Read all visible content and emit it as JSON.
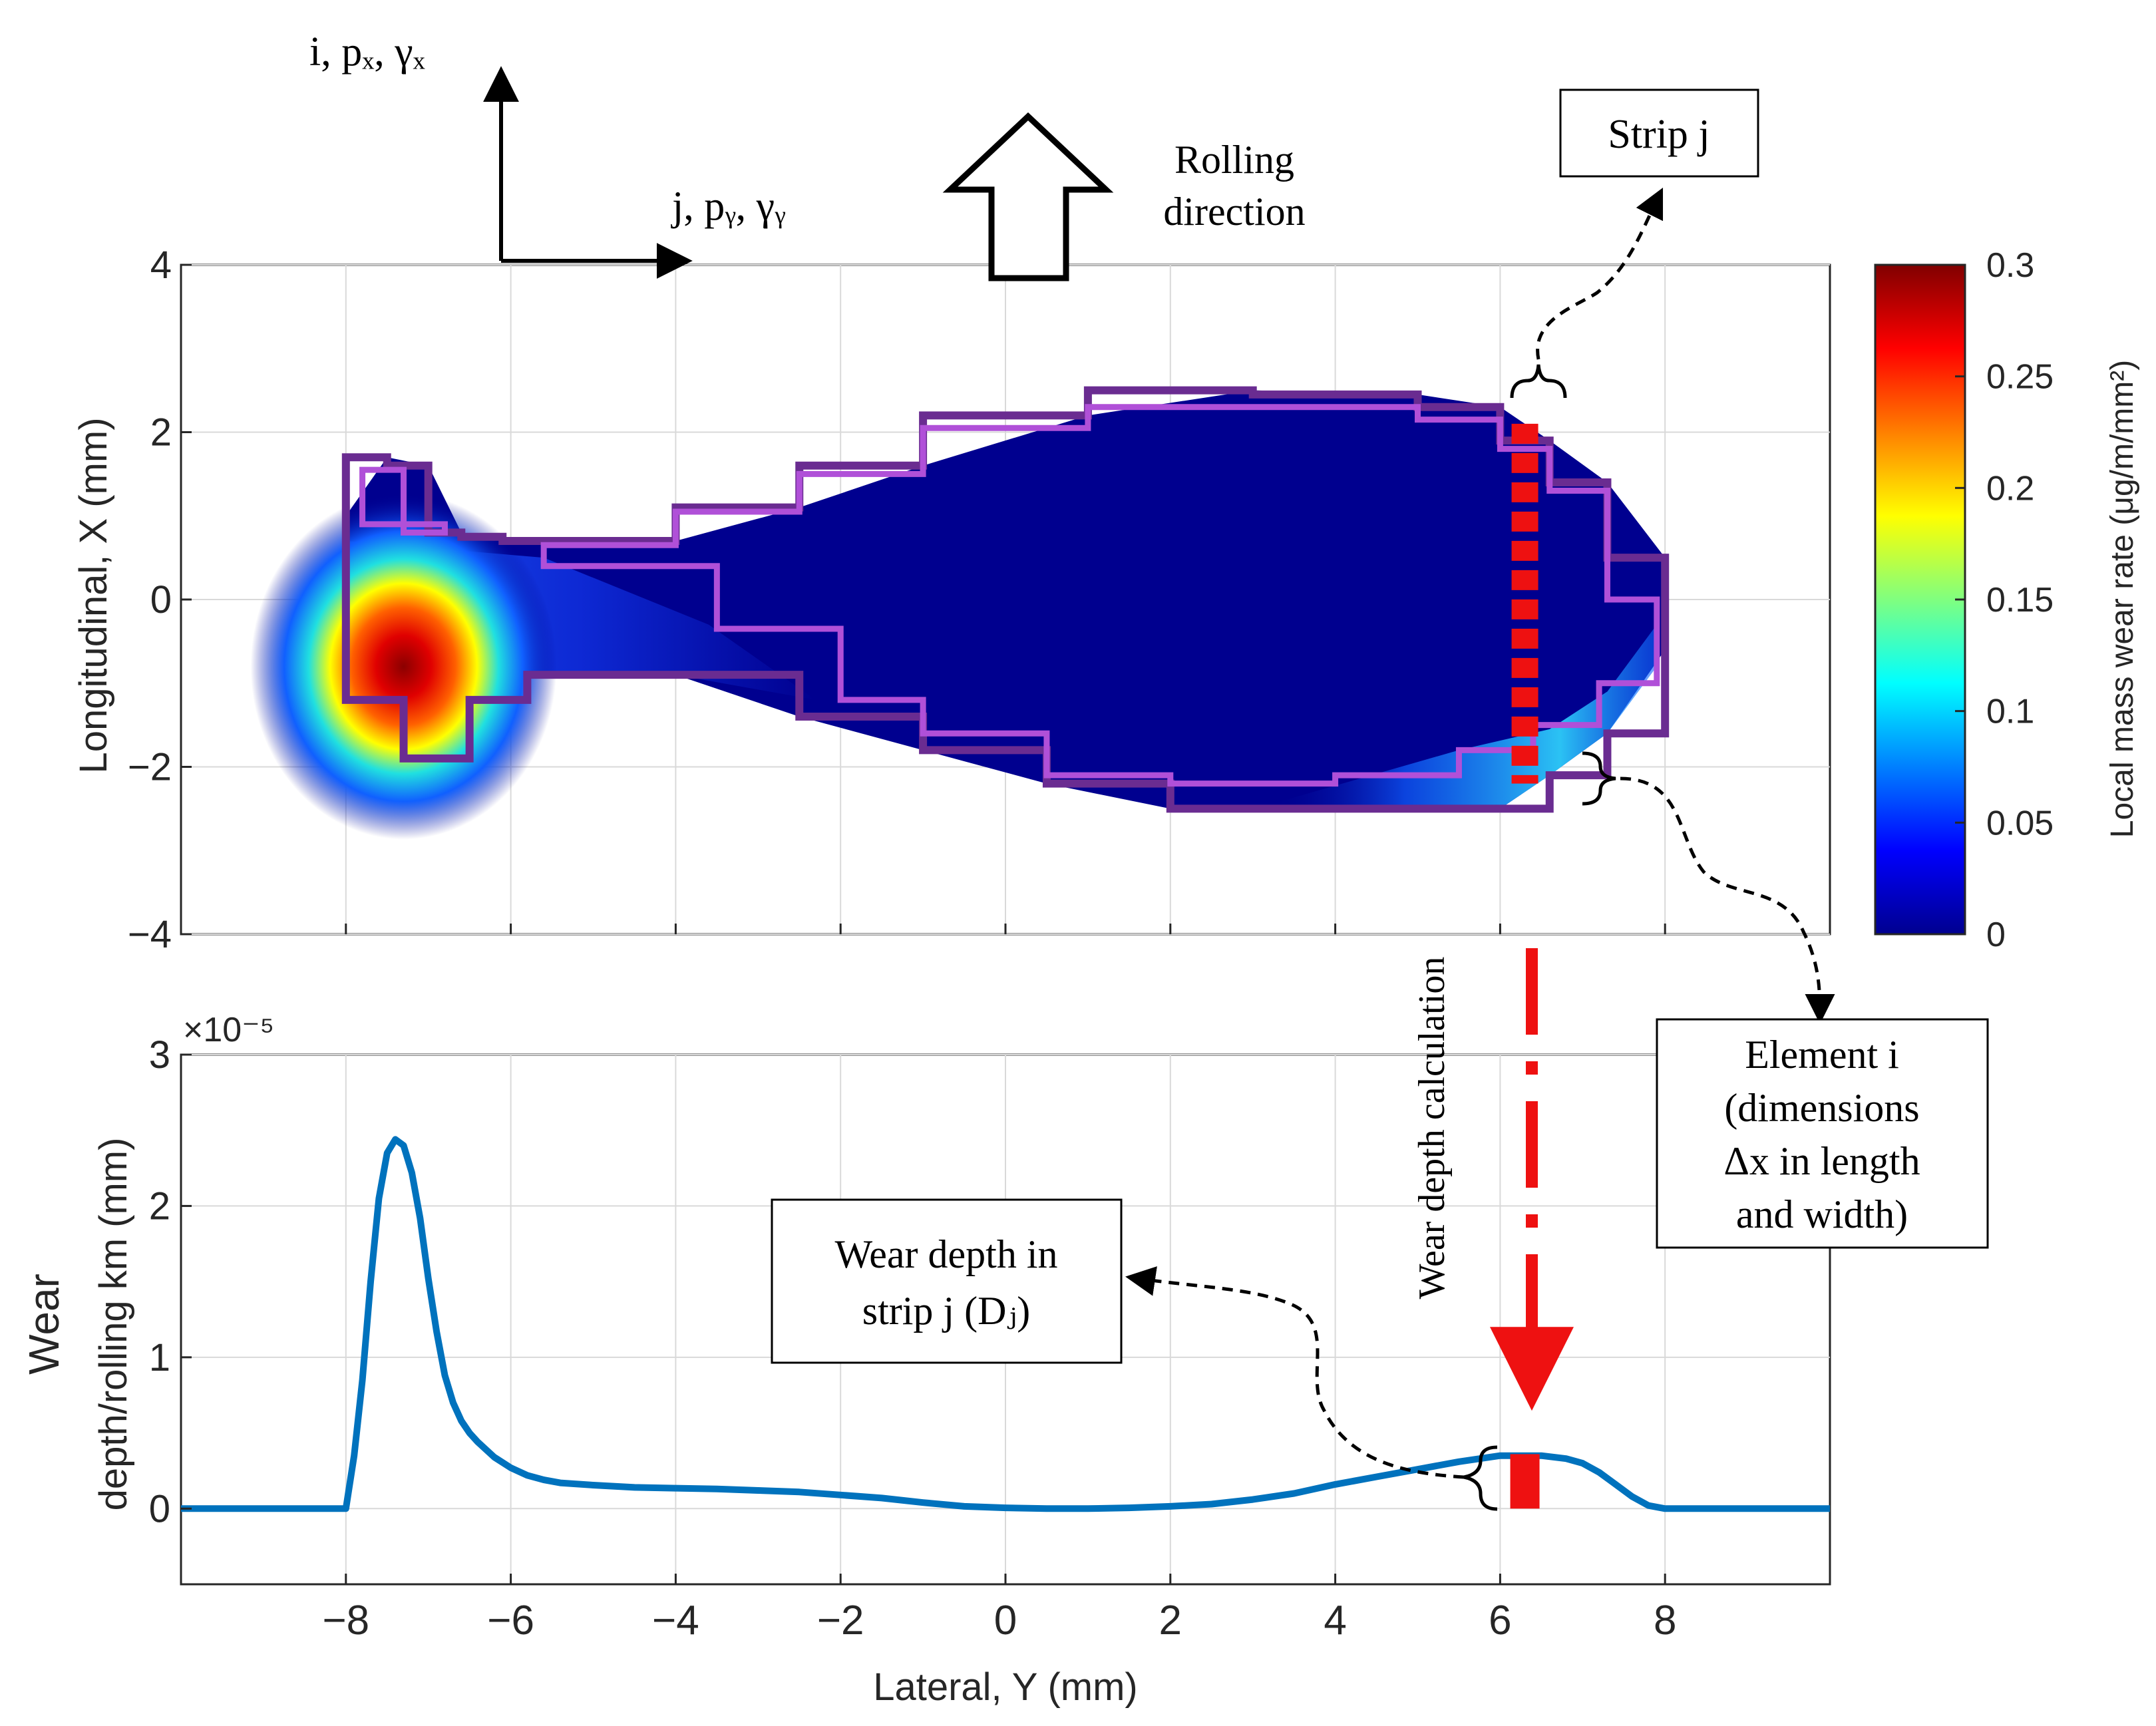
{
  "chart_data": [
    {
      "type": "heatmap",
      "title": "",
      "xlabel": "Lateral, Y (mm)",
      "ylabel": "Longitudinal, X (mm)",
      "xlim": [
        -10,
        10
      ],
      "ylim": [
        -4,
        4
      ],
      "yticks": [
        -4,
        -2,
        0,
        2,
        4
      ],
      "ytick_labels": [
        "−4",
        "−2",
        "0",
        "2",
        "4"
      ],
      "grid": true,
      "colorbar": {
        "label": "Local mass wear rate (μg/m/mm²)",
        "range": [
          0,
          0.3
        ],
        "ticks": [
          0,
          0.05,
          0.1,
          0.15,
          0.2,
          0.25,
          0.3
        ],
        "tick_labels": [
          "0",
          "0.05",
          "0.1",
          "0.15",
          "0.2",
          "0.25",
          "0.3"
        ]
      },
      "contact_outline": [
        [
          -8,
          1
        ],
        [
          -7.5,
          1.7
        ],
        [
          -7,
          1.6
        ],
        [
          -6.6,
          0.8
        ],
        [
          -6.1,
          0.75
        ],
        [
          -5.6,
          0.7
        ],
        [
          -4,
          0.7
        ],
        [
          -2.5,
          1.1
        ],
        [
          -1,
          1.6
        ],
        [
          1,
          2.2
        ],
        [
          3,
          2.5
        ],
        [
          5,
          2.45
        ],
        [
          6,
          2.3
        ],
        [
          6.6,
          1.9
        ],
        [
          7.3,
          1.4
        ],
        [
          8,
          0.5
        ],
        [
          8,
          -0.6
        ],
        [
          7.3,
          -1.6
        ],
        [
          6.6,
          -2.1
        ],
        [
          6,
          -2.5
        ],
        [
          4,
          -2.5
        ],
        [
          2,
          -2.5
        ],
        [
          0.5,
          -2.2
        ],
        [
          -1,
          -1.8
        ],
        [
          -2.5,
          -1.4
        ],
        [
          -4,
          -0.9
        ],
        [
          -5.8,
          -0.9
        ],
        [
          -6.5,
          -1.2
        ],
        [
          -7.3,
          -1.9
        ],
        [
          -8,
          -1.2
        ]
      ],
      "stick_outline": [
        [
          -7.8,
          1.5
        ],
        [
          -7.3,
          1.55
        ],
        [
          -6.8,
          0.9
        ],
        [
          -7.3,
          0.8
        ],
        [
          -7.8,
          0.9
        ]
      ],
      "stick_outline_2": [
        [
          -5.6,
          0.6
        ],
        [
          -4,
          0.65
        ],
        [
          -2.5,
          1.05
        ],
        [
          -1,
          1.5
        ],
        [
          1,
          2.05
        ],
        [
          3,
          2.3
        ],
        [
          5,
          2.3
        ],
        [
          6,
          2.15
        ],
        [
          6.6,
          1.8
        ],
        [
          7.3,
          1.3
        ],
        [
          7.9,
          0.0
        ],
        [
          7.2,
          -1.0
        ],
        [
          6.4,
          -1.5
        ],
        [
          5.5,
          -1.8
        ],
        [
          4,
          -2.1
        ],
        [
          2,
          -2.2
        ],
        [
          0.5,
          -2.1
        ],
        [
          -1,
          -1.6
        ],
        [
          -2,
          -1.2
        ],
        [
          -3.5,
          -0.35
        ],
        [
          -5.6,
          0.4
        ]
      ],
      "hotspot": {
        "y": -7.3,
        "x": -0.8,
        "peak": 0.3
      }
    },
    {
      "type": "line",
      "title": "",
      "xlabel": "Lateral, Y (mm)",
      "ylabel": "Wear depth/rolling km (mm)",
      "ylabel_lines": [
        "Wear",
        "depth/rolling km (mm)"
      ],
      "xlim": [
        -10,
        10
      ],
      "ylim": [
        -0.5,
        3
      ],
      "exponent_label": "×10⁻⁵",
      "xticks": [
        -8,
        -6,
        -4,
        -2,
        0,
        2,
        4,
        6,
        8
      ],
      "xtick_labels": [
        "−8",
        "−6",
        "−4",
        "−2",
        "0",
        "2",
        "4",
        "6",
        "8"
      ],
      "yticks": [
        0,
        1,
        2,
        3
      ],
      "ytick_labels": [
        "0",
        "1",
        "2",
        "3"
      ],
      "grid": true,
      "series": [
        {
          "name": "Wear depth",
          "x": [
            -10,
            -8.0,
            -7.9,
            -7.8,
            -7.7,
            -7.6,
            -7.5,
            -7.4,
            -7.3,
            -7.2,
            -7.1,
            -7.0,
            -6.9,
            -6.8,
            -6.7,
            -6.6,
            -6.5,
            -6.4,
            -6.2,
            -6.0,
            -5.8,
            -5.6,
            -5.4,
            -5.0,
            -4.5,
            -4.0,
            -3.5,
            -3.0,
            -2.5,
            -2.0,
            -1.5,
            -1.0,
            -0.5,
            0.0,
            0.5,
            1.0,
            1.5,
            2.0,
            2.5,
            3.0,
            3.5,
            4.0,
            4.5,
            5.0,
            5.5,
            6.0,
            6.5,
            6.8,
            7.0,
            7.2,
            7.4,
            7.6,
            7.8,
            8.0,
            8.5,
            10
          ],
          "values": [
            0,
            0,
            0.35,
            0.85,
            1.5,
            2.05,
            2.35,
            2.44,
            2.4,
            2.22,
            1.92,
            1.52,
            1.17,
            0.88,
            0.7,
            0.58,
            0.5,
            0.44,
            0.34,
            0.27,
            0.22,
            0.19,
            0.17,
            0.155,
            0.14,
            0.135,
            0.13,
            0.12,
            0.11,
            0.09,
            0.07,
            0.04,
            0.015,
            0.005,
            0.0,
            0.0,
            0.005,
            0.015,
            0.03,
            0.06,
            0.1,
            0.16,
            0.21,
            0.26,
            0.31,
            0.35,
            0.35,
            0.33,
            0.3,
            0.24,
            0.16,
            0.08,
            0.02,
            0.0,
            0,
            0
          ],
          "color": "#0072BD"
        }
      ]
    }
  ],
  "annotations": {
    "axes_glyph": {
      "vertical_label": "i, pₓ, γₓ",
      "horizontal_label": "j, pᵧ, γᵧ"
    },
    "rolling_direction": [
      "Rolling",
      "direction"
    ],
    "strip_label": "Strip j",
    "element_label": [
      "Element i",
      "(dimensions",
      "Δx in length",
      "and width)"
    ],
    "wear_depth_box": [
      "Wear depth in",
      "strip j (Dⱼ)"
    ],
    "wear_depth_calc": "Wear depth calculation"
  },
  "colors": {
    "background_fill": "#00008F",
    "outer_contour": "#6A2C91",
    "inner_contour": "#B050D8",
    "strip_marker": "#EE1111",
    "line": "#0072BD"
  }
}
